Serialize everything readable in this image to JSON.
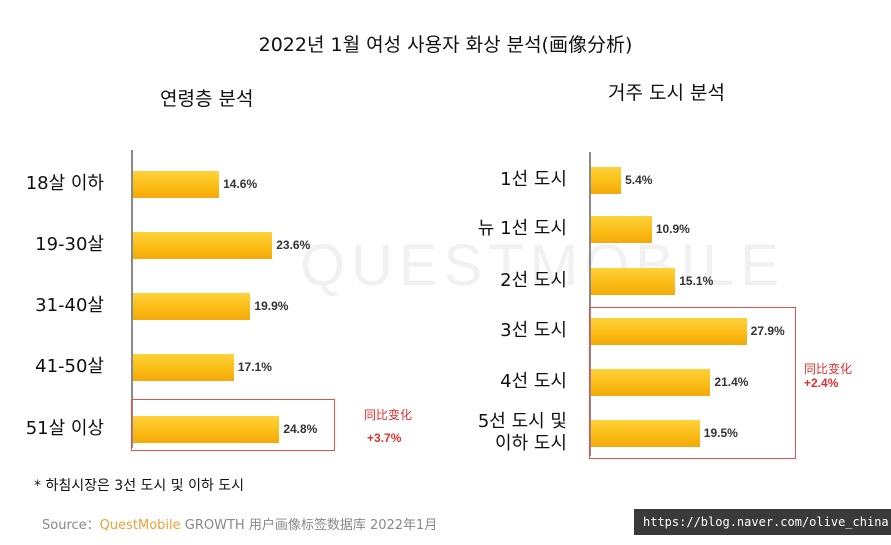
{
  "title": "2022년 1월 여성 사용자 화상 분석(画像分析)",
  "watermark": "QUESTMOBILE",
  "chart_data": [
    {
      "type": "bar",
      "orientation": "horizontal",
      "title": "연령층 분석",
      "categories": [
        "18살 이하",
        "19-30살",
        "31-40살",
        "41-50살",
        "51살 이상"
      ],
      "values": [
        14.6,
        23.6,
        19.9,
        17.1,
        24.8
      ],
      "value_labels": [
        "14.6%",
        "23.6%",
        "19.9%",
        "17.1%",
        "24.8%"
      ],
      "highlight": {
        "categories": [
          "51살 이상"
        ],
        "label": "同比变化",
        "change": "+3.7%"
      }
    },
    {
      "type": "bar",
      "orientation": "horizontal",
      "title": "거주 도시 분석",
      "categories": [
        "1선 도시",
        "뉴 1선 도시",
        "2선 도시",
        "3선 도시",
        "4선 도시",
        "5선 도시 및 이하 도시"
      ],
      "category_lines": [
        [
          "1선 도시"
        ],
        [
          "뉴 1선 도시"
        ],
        [
          "2선 도시"
        ],
        [
          "3선 도시"
        ],
        [
          "4선 도시"
        ],
        [
          "5선 도시 및",
          "이하 도시"
        ]
      ],
      "values": [
        5.4,
        10.9,
        15.1,
        27.9,
        21.4,
        19.5
      ],
      "value_labels": [
        "5.4%",
        "10.9%",
        "15.1%",
        "27.9%",
        "21.4%",
        "19.5%"
      ],
      "highlight": {
        "categories": [
          "3선 도시",
          "4선 도시",
          "5선 도시 및 이하 도시"
        ],
        "label": "同比变化",
        "change": "+2.4%"
      }
    }
  ],
  "footnote": "* 하침시장은 3선 도시 및 이하 도시",
  "source": {
    "prefix": "Source：",
    "brand": "QuestMobile",
    "rest": " GROWTH 用户画像标签数据库 2022年1月"
  },
  "url": "https://blog.naver.com/olive_china"
}
